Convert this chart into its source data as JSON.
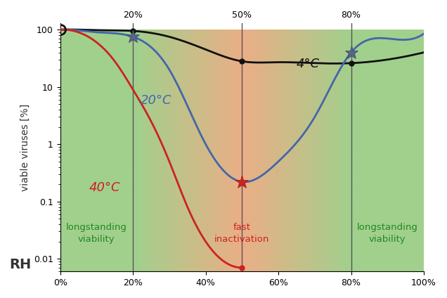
{
  "title": "",
  "xlabel": "RH",
  "ylabel": "viable viruses [%]",
  "xlim": [
    0,
    100
  ],
  "ylim_log": [
    -3,
    2
  ],
  "x_ticks": [
    0,
    20,
    40,
    60,
    80,
    100
  ],
  "x_tick_labels": [
    "0%",
    "20%",
    "40%",
    "60%",
    "80%",
    "100%"
  ],
  "vline_positions": [
    20,
    50,
    80
  ],
  "vline_top_labels": [
    "20%",
    "50%",
    "80%"
  ],
  "bg_green": "#90c878",
  "bg_orange": "#e8a070",
  "curve_4C_color": "#111111",
  "curve_20C_color": "#4466aa",
  "curve_40C_color": "#cc2222",
  "label_4C": "4°C",
  "label_20C": "20°C",
  "label_40C": "40°C",
  "label_longstanding1": "longstanding\nviability",
  "label_fast": "fast\ninactivation",
  "label_longstanding2": "longstanding\nviability",
  "text_color_green": "#228822",
  "text_color_red": "#cc2222",
  "marker_color_dark": "#222222",
  "marker_color_star": "#556688",
  "marker_color_star_red": "#cc2222"
}
